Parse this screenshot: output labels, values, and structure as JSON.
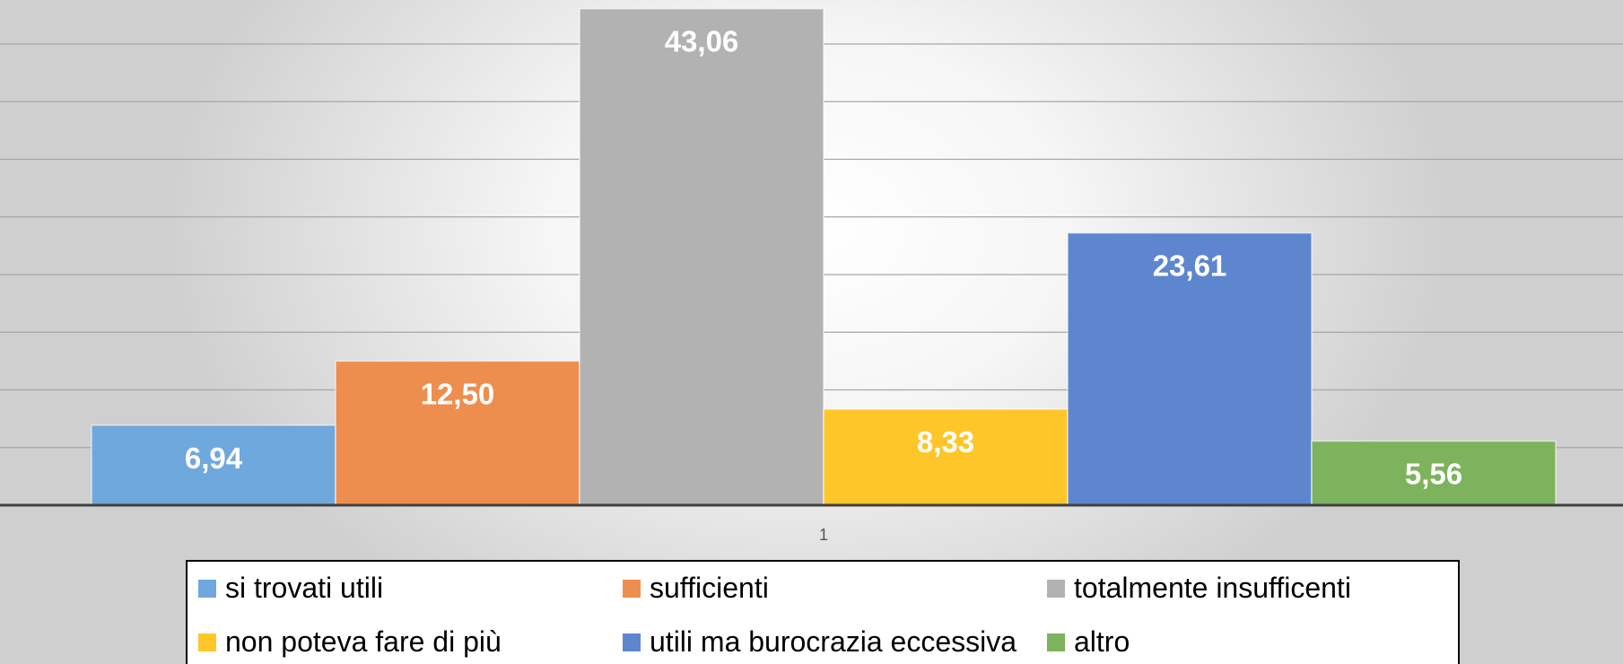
{
  "chart_data": {
    "type": "bar",
    "categories": [
      "1"
    ],
    "series": [
      {
        "name": "si trovati utili",
        "values": [
          6.94
        ],
        "label": "6,94",
        "color": "#6FA8DC"
      },
      {
        "name": "sufficienti",
        "values": [
          12.5
        ],
        "label": "12,50",
        "color": "#EE8E4E"
      },
      {
        "name": "totalmente insufficenti",
        "values": [
          43.06
        ],
        "label": "43,06",
        "color": "#B2B2B2"
      },
      {
        "name": "non poteva fare di più",
        "values": [
          8.33
        ],
        "label": "8,33",
        "color": "#FFC62A"
      },
      {
        "name": "utili ma burocrazia eccessiva",
        "values": [
          23.61
        ],
        "label": "23,61",
        "color": "#5E86CE"
      },
      {
        "name": "altro",
        "values": [
          5.56
        ],
        "label": "5,56",
        "color": "#7DB35C"
      }
    ],
    "title": "",
    "xlabel": "",
    "ylabel": "",
    "ylim": [
      0,
      45
    ],
    "grid": true,
    "legend": "bottom",
    "data_labels": "inside-bar"
  }
}
